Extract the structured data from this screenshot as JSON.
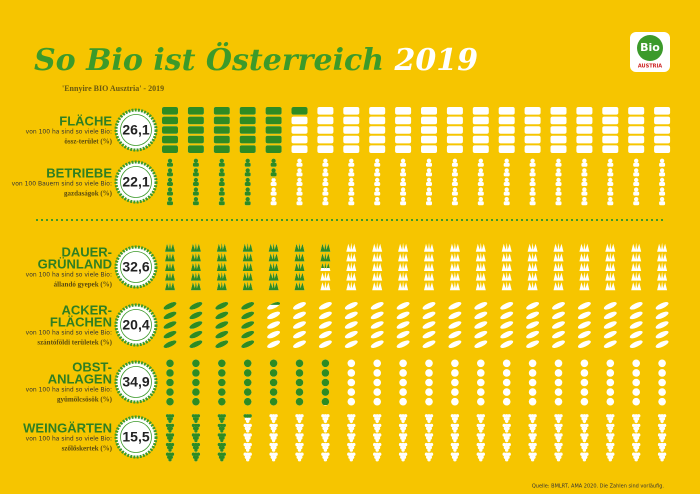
{
  "chart_data": {
    "type": "pictograph",
    "title": "So Bio ist Österreich",
    "title_year": "2019",
    "subtitle": "'Ennyire BIO Ausztria' - 2019",
    "logo": "Bio",
    "logo_sub": "AUSTRIA",
    "source": "Quelle: BMLRT, AMA 2020. Die Zahlen sind vorläufig.",
    "total": 100,
    "color": "#2e8b22",
    "empty_color": "#ffffff",
    "rows": [
      {
        "name_lines": [
          "FLÄCHE"
        ],
        "note": "von 100 ha sind so viele Bio:",
        "hu": "össz-terület (%)",
        "value": 26.1,
        "value_label": "26,1"
      },
      {
        "name_lines": [
          "BETRIEBE"
        ],
        "note": "von 100 Bauern sind so viele Bio:",
        "hu": "gazdaságok (%)",
        "value": 22.1,
        "value_label": "22,1"
      },
      {
        "name_lines": [
          "DAUER-",
          "GRÜNLAND"
        ],
        "note": "von 100 ha sind so viele Bio:",
        "hu": "állandó gyepek (%)",
        "value": 32.6,
        "value_label": "32,6"
      },
      {
        "name_lines": [
          "ACKER-",
          "FLÄCHEN"
        ],
        "note": "von 100 ha sind so viele Bio:",
        "hu": "szántóföldi területek (%)",
        "value": 20.4,
        "value_label": "20,4"
      },
      {
        "name_lines": [
          "OBST-",
          "ANLAGEN"
        ],
        "note": "von 100 ha sind so viele Bio:",
        "hu": "gyümölcsösök (%)",
        "value": 34.9,
        "value_label": "34,9"
      },
      {
        "name_lines": [
          "WEINGÄRTEN"
        ],
        "note": "von 100 ha sind so viele Bio:",
        "hu": "szőlőskertek (%)",
        "value": 15.5,
        "value_label": "15,5"
      }
    ]
  }
}
